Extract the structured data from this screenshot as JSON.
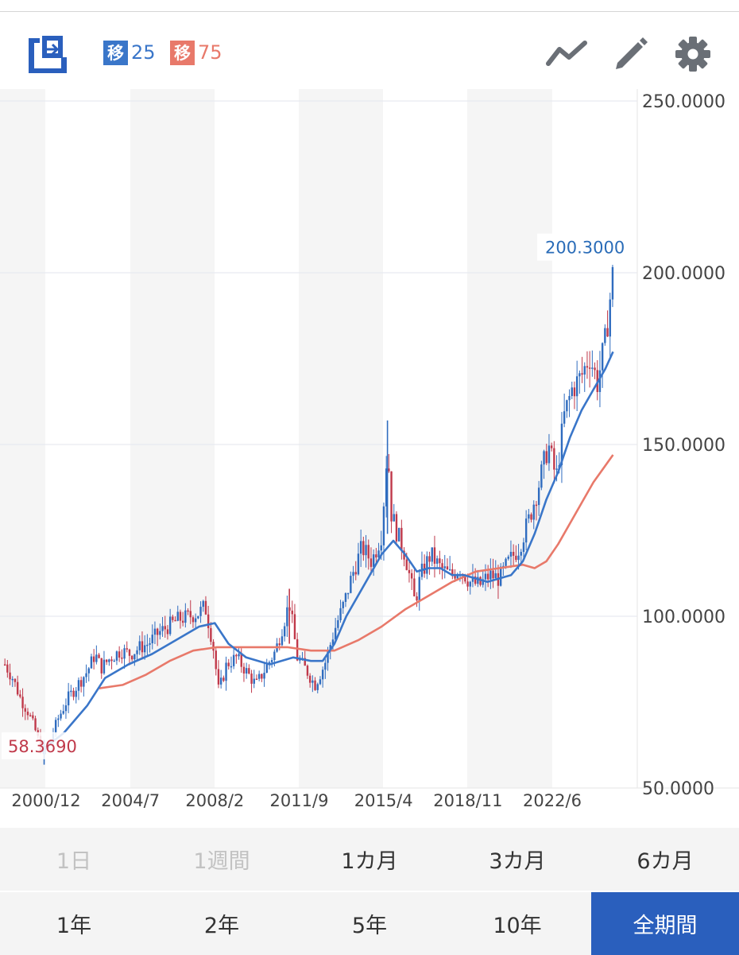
{
  "toolbar": {
    "legend": [
      {
        "badge": "移",
        "value": "25",
        "color": "#3a76c9"
      },
      {
        "badge": "移",
        "value": "75",
        "color": "#e8796a"
      }
    ],
    "icons": [
      "export-icon",
      "trend-line-icon",
      "pencil-icon",
      "gear-icon"
    ]
  },
  "chart_data": {
    "type": "candlestick",
    "x_tick_labels": [
      "2000/12",
      "2004/7",
      "2008/2",
      "2011/9",
      "2015/4",
      "2018/11",
      "2022/6"
    ],
    "y_tick_labels": [
      "250.0000",
      "200.0000",
      "150.0000",
      "100.0000",
      "50.0000"
    ],
    "ylim": [
      50,
      250
    ],
    "current_price_label": "200.3000",
    "min_price_label": "58.3690",
    "colors": {
      "up": "#2f6cbf",
      "down": "#c0394a",
      "ma25": "#3a76c9",
      "ma75": "#e8796a",
      "grid": "#e3e6ee",
      "band": "#f5f5f5"
    },
    "series": [
      {
        "name": "移25",
        "role": "ma"
      },
      {
        "name": "移75",
        "role": "ma"
      }
    ],
    "close_path": [
      [
        "1999/3",
        86
      ],
      [
        "1999/7",
        82
      ],
      [
        "1999/11",
        76
      ],
      [
        "2000/3",
        72
      ],
      [
        "2000/7",
        66
      ],
      [
        "2000/10",
        60
      ],
      [
        "2001/1",
        62
      ],
      [
        "2001/6",
        70
      ],
      [
        "2001/11",
        76
      ],
      [
        "2002/4",
        80
      ],
      [
        "2002/9",
        84
      ],
      [
        "2003/1",
        89
      ],
      [
        "2003/4",
        85
      ],
      [
        "2003/9",
        88
      ],
      [
        "2004/2",
        90
      ],
      [
        "2004/7",
        89
      ],
      [
        "2004/12",
        91
      ],
      [
        "2005/4",
        92
      ],
      [
        "2005/9",
        95
      ],
      [
        "2006/2",
        97
      ],
      [
        "2006/7",
        99
      ],
      [
        "2007/1",
        100
      ],
      [
        "2007/6",
        101
      ],
      [
        "2007/9",
        103
      ],
      [
        "2008/1",
        92
      ],
      [
        "2008/4",
        78
      ],
      [
        "2008/8",
        86
      ],
      [
        "2009/1",
        88
      ],
      [
        "2009/6",
        84
      ],
      [
        "2009/11",
        80
      ],
      [
        "2010/4",
        85
      ],
      [
        "2010/9",
        90
      ],
      [
        "2011/1",
        98
      ],
      [
        "2011/4",
        104
      ],
      [
        "2011/8",
        88
      ],
      [
        "2012/1",
        84
      ],
      [
        "2012/5",
        80
      ],
      [
        "2012/10",
        86
      ],
      [
        "2013/3",
        96
      ],
      [
        "2013/8",
        104
      ],
      [
        "2013/12",
        112
      ],
      [
        "2014/5",
        120
      ],
      [
        "2014/10",
        116
      ],
      [
        "2015/3",
        124
      ],
      [
        "2015/6",
        150
      ],
      [
        "2015/8",
        130
      ],
      [
        "2015/11",
        124
      ],
      [
        "2016/3",
        118
      ],
      [
        "2016/8",
        104
      ],
      [
        "2016/11",
        112
      ],
      [
        "2017/4",
        118
      ],
      [
        "2017/9",
        114
      ],
      [
        "2018/2",
        112
      ],
      [
        "2018/7",
        114
      ],
      [
        "2018/12",
        110
      ],
      [
        "2019/5",
        109
      ],
      [
        "2019/10",
        112
      ],
      [
        "2020/3",
        111
      ],
      [
        "2020/8",
        116
      ],
      [
        "2021/1",
        120
      ],
      [
        "2021/6",
        128
      ],
      [
        "2021/11",
        138
      ],
      [
        "2022/4",
        150
      ],
      [
        "2022/8",
        140
      ],
      [
        "2022/12",
        158
      ],
      [
        "2023/4",
        166
      ],
      [
        "2023/9",
        170
      ],
      [
        "2024/1",
        176
      ],
      [
        "2024/5",
        168
      ],
      [
        "2024/9",
        180
      ],
      [
        "2025/1",
        200.3
      ]
    ],
    "ma25_path": [
      [
        "2000/12",
        62
      ],
      [
        "2001/9",
        66
      ],
      [
        "2002/9",
        74
      ],
      [
        "2003/6",
        82
      ],
      [
        "2004/6",
        86
      ],
      [
        "2005/6",
        89
      ],
      [
        "2006/6",
        93
      ],
      [
        "2007/6",
        97
      ],
      [
        "2008/2",
        98
      ],
      [
        "2008/9",
        92
      ],
      [
        "2009/6",
        88
      ],
      [
        "2010/6",
        86
      ],
      [
        "2011/6",
        88
      ],
      [
        "2012/3",
        87
      ],
      [
        "2012/9",
        87
      ],
      [
        "2013/3",
        92
      ],
      [
        "2013/9",
        100
      ],
      [
        "2014/3",
        106
      ],
      [
        "2014/9",
        112
      ],
      [
        "2015/3",
        118
      ],
      [
        "2015/9",
        122
      ],
      [
        "2016/3",
        118
      ],
      [
        "2016/9",
        113
      ],
      [
        "2017/3",
        114
      ],
      [
        "2017/9",
        114
      ],
      [
        "2018/3",
        112
      ],
      [
        "2018/9",
        112
      ],
      [
        "2019/3",
        111
      ],
      [
        "2019/9",
        110
      ],
      [
        "2020/3",
        111
      ],
      [
        "2020/9",
        112
      ],
      [
        "2021/3",
        116
      ],
      [
        "2021/9",
        124
      ],
      [
        "2022/3",
        134
      ],
      [
        "2022/9",
        142
      ],
      [
        "2023/3",
        152
      ],
      [
        "2023/9",
        160
      ],
      [
        "2024/3",
        166
      ],
      [
        "2024/9",
        172
      ],
      [
        "2025/1",
        177
      ]
    ],
    "ma75_path": [
      [
        "2003/3",
        79
      ],
      [
        "2004/3",
        80
      ],
      [
        "2005/3",
        83
      ],
      [
        "2006/3",
        87
      ],
      [
        "2007/3",
        90
      ],
      [
        "2008/3",
        91
      ],
      [
        "2009/3",
        91
      ],
      [
        "2010/3",
        91
      ],
      [
        "2011/3",
        91
      ],
      [
        "2012/3",
        90
      ],
      [
        "2013/3",
        90
      ],
      [
        "2014/3",
        93
      ],
      [
        "2015/3",
        97
      ],
      [
        "2016/3",
        102
      ],
      [
        "2017/3",
        106
      ],
      [
        "2018/3",
        110
      ],
      [
        "2019/3",
        113
      ],
      [
        "2020/3",
        114
      ],
      [
        "2021/3",
        115
      ],
      [
        "2021/9",
        114
      ],
      [
        "2022/3",
        116
      ],
      [
        "2022/9",
        121
      ],
      [
        "2023/3",
        127
      ],
      [
        "2023/9",
        133
      ],
      [
        "2024/3",
        139
      ],
      [
        "2025/1",
        147
      ]
    ]
  },
  "period_tabs": {
    "row1": [
      {
        "label": "1日",
        "state": "disabled"
      },
      {
        "label": "1週間",
        "state": "disabled"
      },
      {
        "label": "1カ月",
        "state": "normal"
      },
      {
        "label": "3カ月",
        "state": "normal"
      },
      {
        "label": "6カ月",
        "state": "normal"
      }
    ],
    "row2": [
      {
        "label": "1年",
        "state": "normal"
      },
      {
        "label": "2年",
        "state": "normal"
      },
      {
        "label": "5年",
        "state": "normal"
      },
      {
        "label": "10年",
        "state": "normal"
      },
      {
        "label": "全期間",
        "state": "active"
      }
    ]
  }
}
